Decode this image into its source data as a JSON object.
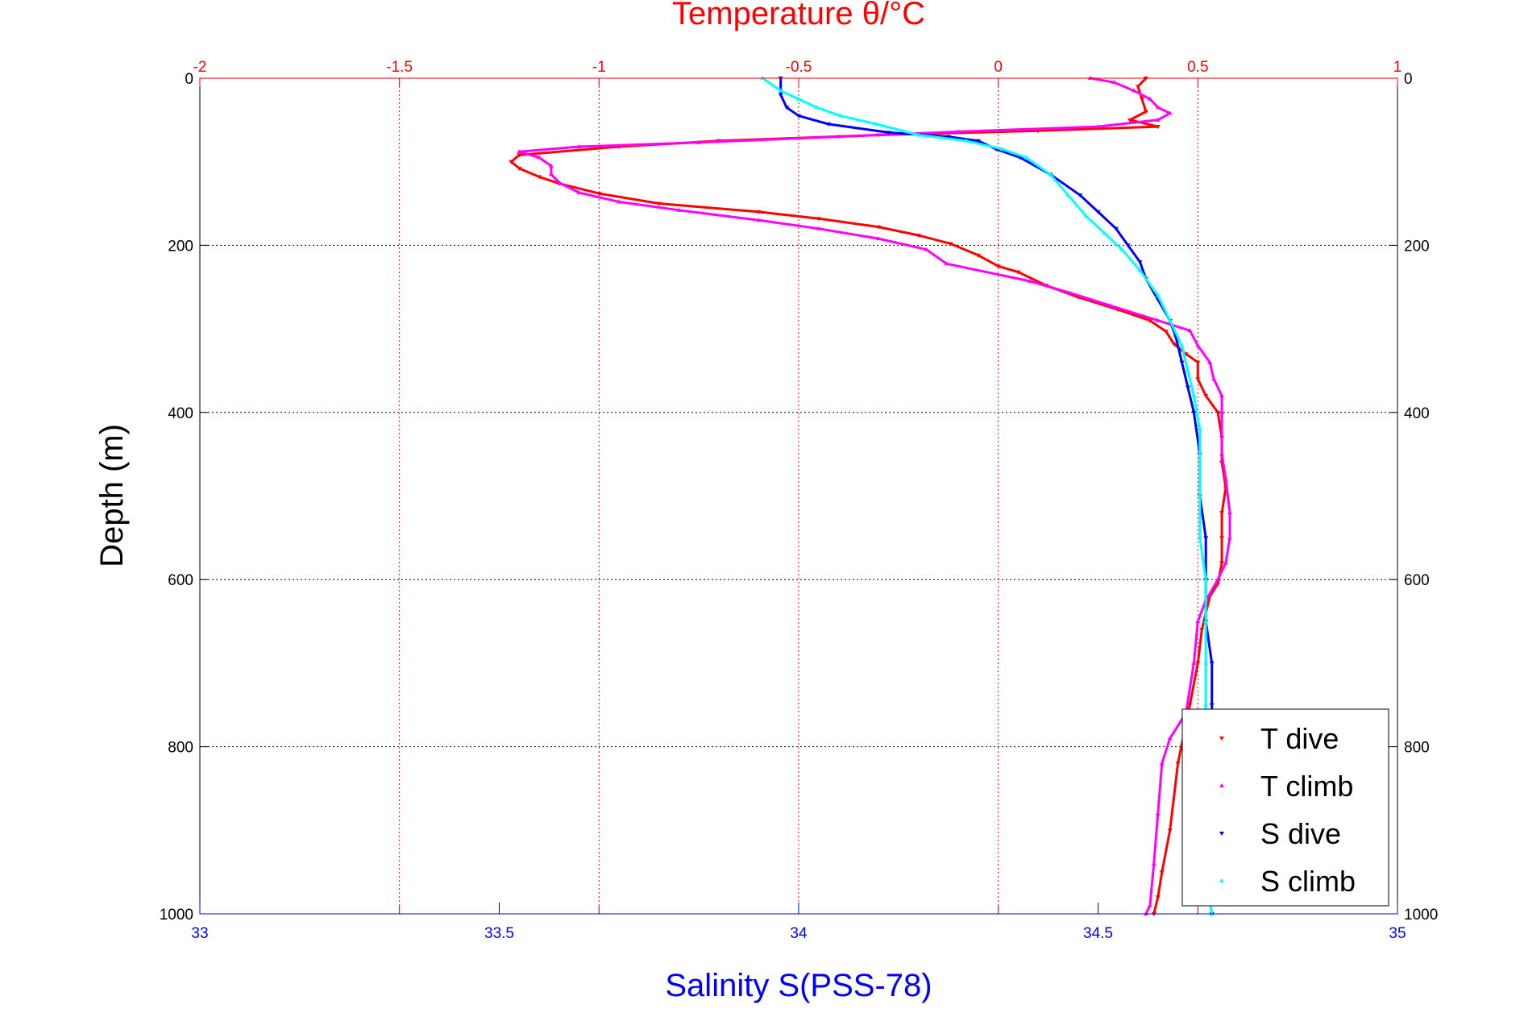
{
  "chart_data": {
    "type": "line",
    "title": "Temperature θ/°C",
    "xlabel": "Salinity S(PSS-78)",
    "ylabel": "Depth (m)",
    "top_axis": {
      "range": [
        -2,
        1
      ],
      "ticks": [
        -2,
        -1.5,
        -1,
        -0.5,
        0,
        0.5,
        1
      ],
      "tick_labels": [
        "-2",
        "-1.5",
        "-1",
        "-0.5",
        "0",
        "0.5",
        "1"
      ],
      "color": "#ff0000"
    },
    "bottom_axis": {
      "range": [
        33,
        35
      ],
      "ticks": [
        33,
        33.5,
        34,
        34.5,
        35
      ],
      "tick_labels": [
        "33",
        "33.5",
        "34",
        "34.5",
        "35"
      ],
      "color": "#0000ff"
    },
    "y_axis": {
      "range": [
        0,
        1000
      ],
      "reversed": true,
      "ticks": [
        0,
        200,
        400,
        600,
        800,
        1000
      ],
      "tick_labels": [
        "0",
        "200",
        "400",
        "600",
        "800",
        "1000"
      ]
    },
    "grid": true,
    "legend_position": "bottom-right",
    "series": [
      {
        "name": "T dive",
        "axis": "top",
        "color": "#ff0000",
        "marker": "down-triangle",
        "points": [
          [
            0.37,
            0
          ],
          [
            0.35,
            10
          ],
          [
            0.36,
            25
          ],
          [
            0.37,
            40
          ],
          [
            0.33,
            50
          ],
          [
            0.4,
            58
          ],
          [
            0.1,
            63
          ],
          [
            -0.3,
            68
          ],
          [
            -0.7,
            75
          ],
          [
            -0.95,
            82
          ],
          [
            -1.2,
            92
          ],
          [
            -1.22,
            100
          ],
          [
            -1.2,
            108
          ],
          [
            -1.15,
            118
          ],
          [
            -1.1,
            126
          ],
          [
            -1.0,
            138
          ],
          [
            -0.85,
            150
          ],
          [
            -0.6,
            160
          ],
          [
            -0.45,
            168
          ],
          [
            -0.3,
            178
          ],
          [
            -0.2,
            188
          ],
          [
            -0.12,
            198
          ],
          [
            -0.05,
            212
          ],
          [
            0.0,
            225
          ],
          [
            0.05,
            232
          ],
          [
            0.12,
            248
          ],
          [
            0.2,
            262
          ],
          [
            0.3,
            277
          ],
          [
            0.38,
            290
          ],
          [
            0.42,
            303
          ],
          [
            0.44,
            318
          ],
          [
            0.47,
            330
          ],
          [
            0.5,
            340
          ],
          [
            0.5,
            360
          ],
          [
            0.52,
            380
          ],
          [
            0.55,
            400
          ],
          [
            0.56,
            430
          ],
          [
            0.56,
            460
          ],
          [
            0.57,
            490
          ],
          [
            0.56,
            520
          ],
          [
            0.56,
            550
          ],
          [
            0.56,
            580
          ],
          [
            0.55,
            605
          ],
          [
            0.53,
            620
          ],
          [
            0.51,
            660
          ],
          [
            0.5,
            700
          ],
          [
            0.48,
            750
          ],
          [
            0.45,
            820
          ],
          [
            0.43,
            900
          ],
          [
            0.41,
            950
          ],
          [
            0.4,
            980
          ],
          [
            0.39,
            1000
          ]
        ]
      },
      {
        "name": "T climb",
        "axis": "top",
        "color": "#ff00ff",
        "marker": "up-triangle",
        "points": [
          [
            0.23,
            0
          ],
          [
            0.29,
            5
          ],
          [
            0.34,
            15
          ],
          [
            0.38,
            25
          ],
          [
            0.4,
            35
          ],
          [
            0.43,
            42
          ],
          [
            0.4,
            50
          ],
          [
            0.25,
            58
          ],
          [
            -0.1,
            64
          ],
          [
            -0.4,
            70
          ],
          [
            -0.75,
            77
          ],
          [
            -1.05,
            82
          ],
          [
            -1.2,
            88
          ],
          [
            -1.15,
            95
          ],
          [
            -1.12,
            105
          ],
          [
            -1.12,
            115
          ],
          [
            -1.1,
            125
          ],
          [
            -1.05,
            137
          ],
          [
            -0.95,
            148
          ],
          [
            -0.8,
            158
          ],
          [
            -0.6,
            170
          ],
          [
            -0.45,
            180
          ],
          [
            -0.3,
            192
          ],
          [
            -0.18,
            205
          ],
          [
            -0.13,
            222
          ],
          [
            0.08,
            243
          ],
          [
            0.18,
            257
          ],
          [
            0.28,
            272
          ],
          [
            0.4,
            290
          ],
          [
            0.48,
            302
          ],
          [
            0.5,
            320
          ],
          [
            0.53,
            340
          ],
          [
            0.54,
            360
          ],
          [
            0.56,
            380
          ],
          [
            0.56,
            400
          ],
          [
            0.56,
            450
          ],
          [
            0.57,
            480
          ],
          [
            0.58,
            520
          ],
          [
            0.58,
            550
          ],
          [
            0.57,
            580
          ],
          [
            0.55,
            600
          ],
          [
            0.52,
            625
          ],
          [
            0.5,
            650
          ],
          [
            0.49,
            700
          ],
          [
            0.47,
            760
          ],
          [
            0.43,
            790
          ],
          [
            0.41,
            820
          ],
          [
            0.4,
            880
          ],
          [
            0.39,
            940
          ],
          [
            0.38,
            990
          ],
          [
            0.37,
            1000
          ]
        ]
      },
      {
        "name": "S dive",
        "axis": "bottom",
        "color": "#0000ff",
        "marker": "down-triangle",
        "points": [
          [
            33.97,
            0
          ],
          [
            33.97,
            20
          ],
          [
            33.98,
            35
          ],
          [
            34.0,
            45
          ],
          [
            34.05,
            55
          ],
          [
            34.15,
            65
          ],
          [
            34.25,
            70
          ],
          [
            34.3,
            75
          ],
          [
            34.33,
            85
          ],
          [
            34.37,
            95
          ],
          [
            34.42,
            115
          ],
          [
            34.47,
            140
          ],
          [
            34.5,
            160
          ],
          [
            34.53,
            180
          ],
          [
            34.55,
            200
          ],
          [
            34.57,
            220
          ],
          [
            34.58,
            240
          ],
          [
            34.6,
            265
          ],
          [
            34.62,
            290
          ],
          [
            34.63,
            310
          ],
          [
            34.64,
            340
          ],
          [
            34.65,
            370
          ],
          [
            34.66,
            400
          ],
          [
            34.67,
            450
          ],
          [
            34.67,
            500
          ],
          [
            34.68,
            550
          ],
          [
            34.68,
            600
          ],
          [
            34.68,
            650
          ],
          [
            34.69,
            700
          ],
          [
            34.69,
            750
          ],
          [
            34.69,
            800
          ],
          [
            34.69,
            850
          ],
          [
            34.68,
            900
          ],
          [
            34.68,
            950
          ],
          [
            34.69,
            1000
          ]
        ]
      },
      {
        "name": "S climb",
        "axis": "bottom",
        "color": "#00ffff",
        "marker": "up-triangle",
        "points": [
          [
            33.94,
            0
          ],
          [
            33.97,
            15
          ],
          [
            34.0,
            25
          ],
          [
            34.03,
            35
          ],
          [
            34.07,
            45
          ],
          [
            34.13,
            55
          ],
          [
            34.2,
            68
          ],
          [
            34.28,
            75
          ],
          [
            34.34,
            85
          ],
          [
            34.38,
            95
          ],
          [
            34.42,
            115
          ],
          [
            34.45,
            140
          ],
          [
            34.48,
            165
          ],
          [
            34.51,
            185
          ],
          [
            34.54,
            205
          ],
          [
            34.57,
            230
          ],
          [
            34.6,
            260
          ],
          [
            34.62,
            290
          ],
          [
            34.64,
            320
          ],
          [
            34.65,
            350
          ],
          [
            34.66,
            380
          ],
          [
            34.67,
            420
          ],
          [
            34.67,
            460
          ],
          [
            34.67,
            500
          ],
          [
            34.67,
            550
          ],
          [
            34.68,
            600
          ],
          [
            34.68,
            650
          ],
          [
            34.68,
            700
          ],
          [
            34.68,
            750
          ],
          [
            34.68,
            800
          ],
          [
            34.68,
            850
          ],
          [
            34.68,
            900
          ],
          [
            34.68,
            950
          ],
          [
            34.69,
            1000
          ]
        ]
      }
    ]
  }
}
